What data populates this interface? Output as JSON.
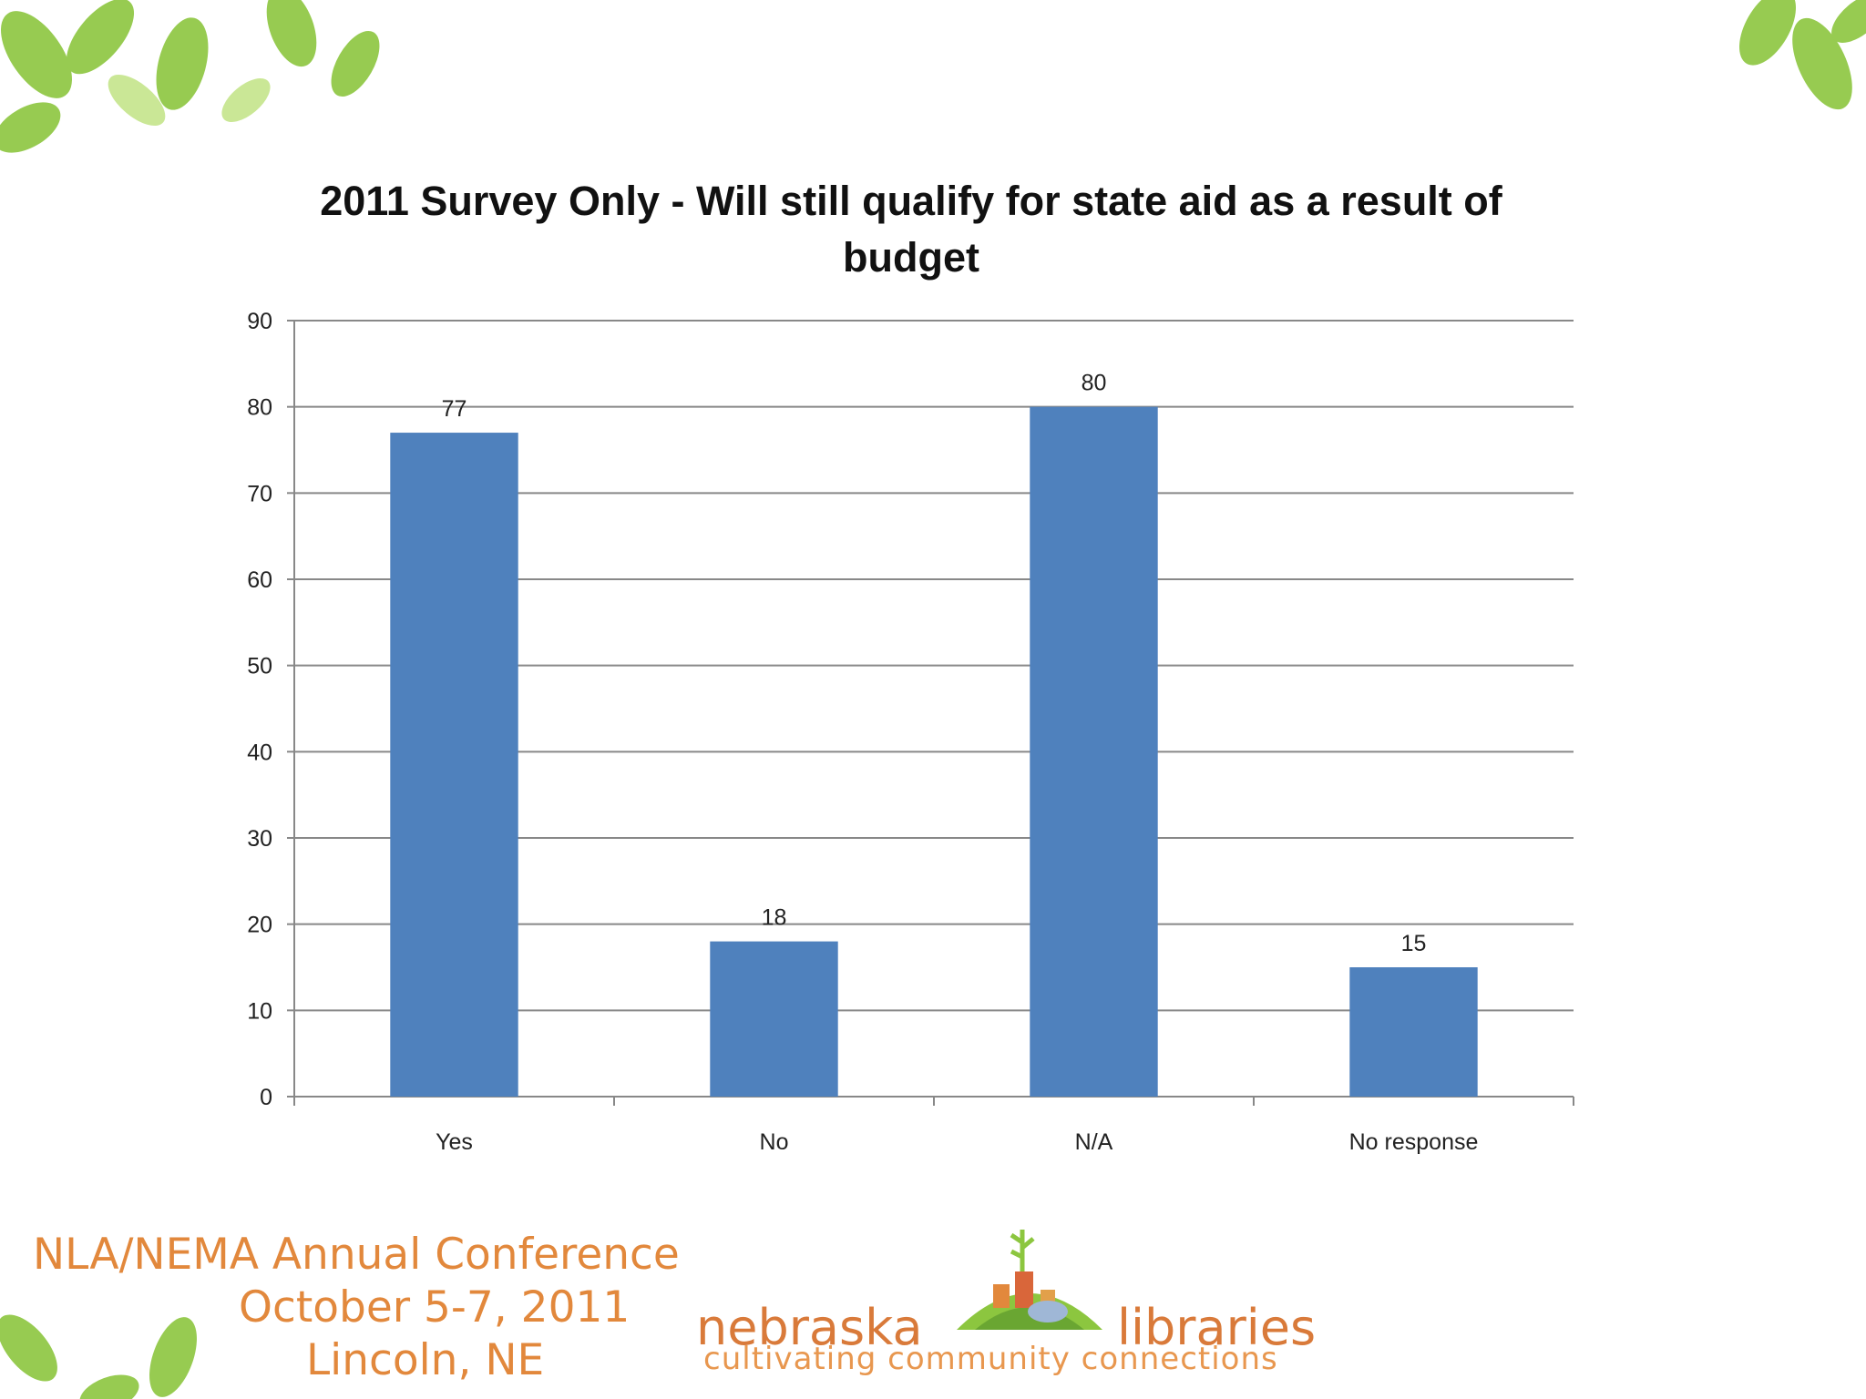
{
  "chart_data": {
    "type": "bar",
    "title": "2011 Survey Only - Will still qualify for state aid as a result of budget",
    "categories": [
      "Yes",
      "No",
      "N/A",
      "No response"
    ],
    "values": [
      77,
      18,
      80,
      15
    ],
    "data_labels": [
      "77",
      "18",
      "80",
      "15"
    ],
    "xlabel": "",
    "ylabel": "",
    "ylim": [
      0,
      90
    ],
    "yticks": [
      0,
      10,
      20,
      30,
      40,
      50,
      60,
      70,
      80,
      90
    ],
    "grid": true,
    "legend": "none",
    "bar_color": "#4f81bd"
  },
  "footer": {
    "conference_line1": "NLA/NEMA Annual Conference",
    "conference_line2": "October 5-7, 2011",
    "conference_line3": "Lincoln, NE",
    "logo_word_left": "nebraska",
    "logo_word_right": "libraries",
    "logo_tagline": "cultivating community connections",
    "accent_color": "#e2883c",
    "leaf_color": "#8cc63f"
  }
}
